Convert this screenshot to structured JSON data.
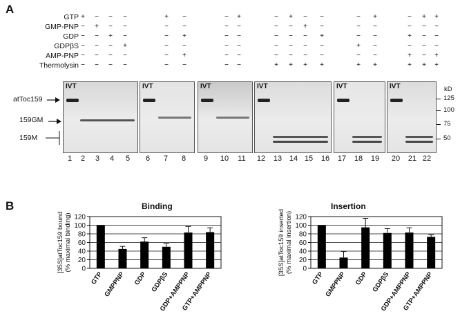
{
  "panel_a": {
    "label": "A",
    "rows": [
      {
        "name": "GTP",
        "signs": [
          "+",
          "−",
          "−",
          "−",
          "+",
          "−",
          "−",
          "+",
          "−",
          "+",
          "−",
          "−",
          "−",
          "+",
          "−",
          "+",
          "+"
        ]
      },
      {
        "name": "GMP-PNP",
        "signs": [
          "−",
          "+",
          "−",
          "−",
          "−",
          "−",
          "−",
          "−",
          "−",
          "−",
          "+",
          "−",
          "−",
          "−",
          "−",
          "−",
          "−"
        ]
      },
      {
        "name": "GDP",
        "signs": [
          "−",
          "−",
          "+",
          "−",
          "−",
          "+",
          "−",
          "−",
          "−",
          "−",
          "−",
          "+",
          "−",
          "−",
          "+",
          "−",
          "−"
        ]
      },
      {
        "name": "GDPβS",
        "signs": [
          "−",
          "−",
          "−",
          "+",
          "−",
          "−",
          "−",
          "−",
          "−",
          "−",
          "−",
          "−",
          "+",
          "−",
          "−",
          "−",
          "−"
        ]
      },
      {
        "name": "AMP-PNP",
        "signs": [
          "−",
          "−",
          "−",
          "−",
          "−",
          "+",
          "−",
          "−",
          "−",
          "−",
          "−",
          "−",
          "−",
          "−",
          "+",
          "−",
          "+"
        ]
      },
      {
        "name": "Thermolysin",
        "signs": [
          "−",
          "−",
          "−",
          "−",
          "−",
          "−",
          "−",
          "−",
          "+",
          "+",
          "+",
          "+",
          "+",
          "+",
          "+",
          "+",
          "+"
        ]
      }
    ],
    "ivt_label": "IVT",
    "markers": {
      "attoc159": "atToc159",
      "gm": "159GM",
      "m": "159M"
    },
    "kd_label": "kD",
    "kd_ticks": [
      "125",
      "100",
      "75",
      "50"
    ],
    "lanes": [
      "1",
      "2",
      "3",
      "4",
      "5",
      "6",
      "7",
      "8",
      "9",
      "10",
      "11",
      "12",
      "13",
      "14",
      "15",
      "16",
      "17",
      "18",
      "19",
      "20",
      "21",
      "22"
    ]
  },
  "panel_b": {
    "label": "B",
    "y_ticks": [
      "0",
      "20",
      "40",
      "60",
      "80",
      "100",
      "120"
    ],
    "chart_data": [
      {
        "type": "bar",
        "title": "Binding",
        "ylabel": "[35S]atToc159 bound (% maximal binding)",
        "ylim": [
          0,
          120
        ],
        "categories": [
          "GTP",
          "GMPPNP",
          "GDP",
          "GDPβS",
          "GDP+AMPPNP",
          "GTP+AMPPNP"
        ],
        "values": [
          100,
          45,
          62,
          50,
          83,
          84
        ],
        "errors": [
          0,
          6,
          9,
          7,
          14,
          10
        ]
      },
      {
        "type": "bar",
        "title": "Insertion",
        "ylabel": "[35S]atToc159 inserted (% maximal insertion)",
        "ylim": [
          0,
          120
        ],
        "categories": [
          "GTP",
          "GMPPNP",
          "GDP",
          "GDPβS",
          "GDP+AMPPNP",
          "GTP+AMPPNP"
        ],
        "values": [
          100,
          25,
          95,
          82,
          83,
          73
        ],
        "errors": [
          0,
          14,
          21,
          10,
          11,
          5
        ]
      }
    ]
  }
}
